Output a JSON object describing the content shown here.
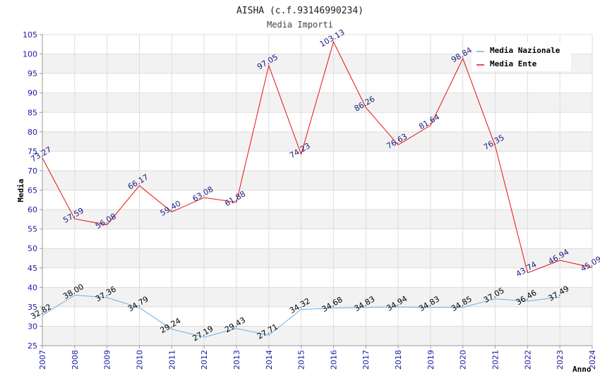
{
  "chart_data": {
    "type": "line",
    "title": "AISHA (c.f.93146990234)",
    "subtitle": "Media Importi",
    "xlabel": "Anno",
    "ylabel": "Media",
    "ylim": [
      25,
      105
    ],
    "yticks": [
      25,
      30,
      35,
      40,
      45,
      50,
      55,
      60,
      65,
      70,
      75,
      80,
      85,
      90,
      95,
      100,
      105
    ],
    "x": [
      2007,
      2008,
      2009,
      2010,
      2011,
      2012,
      2013,
      2014,
      2015,
      2016,
      2017,
      2018,
      2019,
      2020,
      2021,
      2022,
      2023,
      2024
    ],
    "grid": true,
    "legend_position": "top-right",
    "series": [
      {
        "name": "Media Nazionale",
        "color": "#6aaee8",
        "values": [
          32.82,
          38.0,
          37.36,
          34.79,
          29.24,
          27.19,
          29.43,
          27.71,
          34.32,
          34.68,
          34.83,
          34.94,
          34.83,
          34.85,
          37.05,
          36.46,
          37.49,
          null
        ],
        "labels": [
          "32.82",
          "38.00",
          "37.36",
          "34.79",
          "29.24",
          "27.19",
          "29.43",
          "27.71",
          "34.32",
          "34.68",
          "34.83",
          "34.94",
          "34.83",
          "34.85",
          "37.05",
          "36.46",
          "37.49",
          ""
        ]
      },
      {
        "name": "Media Ente",
        "color": "#e81010",
        "values": [
          73.27,
          57.59,
          56.08,
          66.17,
          59.4,
          63.08,
          61.88,
          97.05,
          74.23,
          103.13,
          86.26,
          76.63,
          81.64,
          98.84,
          76.35,
          43.74,
          46.94,
          45.09
        ],
        "labels": [
          "73.27",
          "57.59",
          "56.08",
          "66.17",
          "59.40",
          "63.08",
          "61.88",
          "97.05",
          "74.23",
          "103.13",
          "86.26",
          "76.63",
          "81.64",
          "98.84",
          "76.35",
          "43.74",
          "46.94",
          "45.09"
        ]
      }
    ]
  }
}
